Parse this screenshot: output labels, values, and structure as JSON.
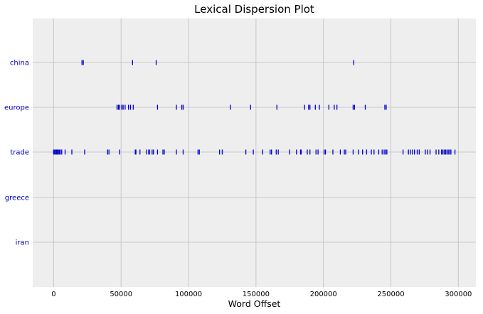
{
  "chart_data": {
    "type": "scatter",
    "title": "Lexical Dispersion Plot",
    "xlabel": "Word Offset",
    "ylabel": "",
    "xlim": [
      -15500,
      313000
    ],
    "xticks": [
      0,
      50000,
      100000,
      150000,
      200000,
      250000,
      300000
    ],
    "xtick_labels": [
      "0",
      "50000",
      "100000",
      "150000",
      "200000",
      "250000",
      "300000"
    ],
    "grid": true,
    "marker": "|",
    "marker_color": "#0000cc",
    "background_color": "#eeeeee",
    "grid_color": "#c8c8c8",
    "words": [
      "china",
      "europe",
      "trade",
      "greece",
      "iran"
    ],
    "series": [
      {
        "name": "china",
        "x": [
          21000,
          22000,
          58500,
          76000,
          222500
        ]
      },
      {
        "name": "europe",
        "x": [
          47000,
          48000,
          49000,
          50500,
          51500,
          53000,
          55500,
          57000,
          59000,
          77000,
          91000,
          95000,
          96000,
          131000,
          146000,
          165500,
          186000,
          189000,
          190000,
          194000,
          197000,
          204000,
          208000,
          210000,
          222000,
          223000,
          231000,
          245500,
          246500
        ]
      },
      {
        "name": "trade",
        "x": [
          0,
          700,
          1400,
          2100,
          2800,
          3500,
          4200,
          5000,
          6000,
          8500,
          13500,
          23000,
          40000,
          41000,
          49000,
          60500,
          61000,
          64000,
          69000,
          70500,
          71000,
          73000,
          74000,
          77000,
          81000,
          82000,
          91000,
          96000,
          107000,
          108000,
          123000,
          125000,
          142500,
          148000,
          155000,
          160500,
          161500,
          165000,
          166500,
          175000,
          180000,
          183000,
          183500,
          188000,
          190000,
          194500,
          196000,
          200500,
          201500,
          207000,
          212500,
          215500,
          216500,
          222000,
          226000,
          229000,
          232000,
          235500,
          237500,
          241000,
          243500,
          245000,
          246000,
          247000,
          259000,
          263000,
          264500,
          266000,
          267500,
          269500,
          271000,
          275500,
          277000,
          279000,
          283500,
          285500,
          287500,
          288500,
          289500,
          290500,
          291500,
          292500,
          293500,
          294500,
          297500
        ]
      },
      {
        "name": "greece",
        "x": []
      },
      {
        "name": "iran",
        "x": []
      }
    ]
  }
}
